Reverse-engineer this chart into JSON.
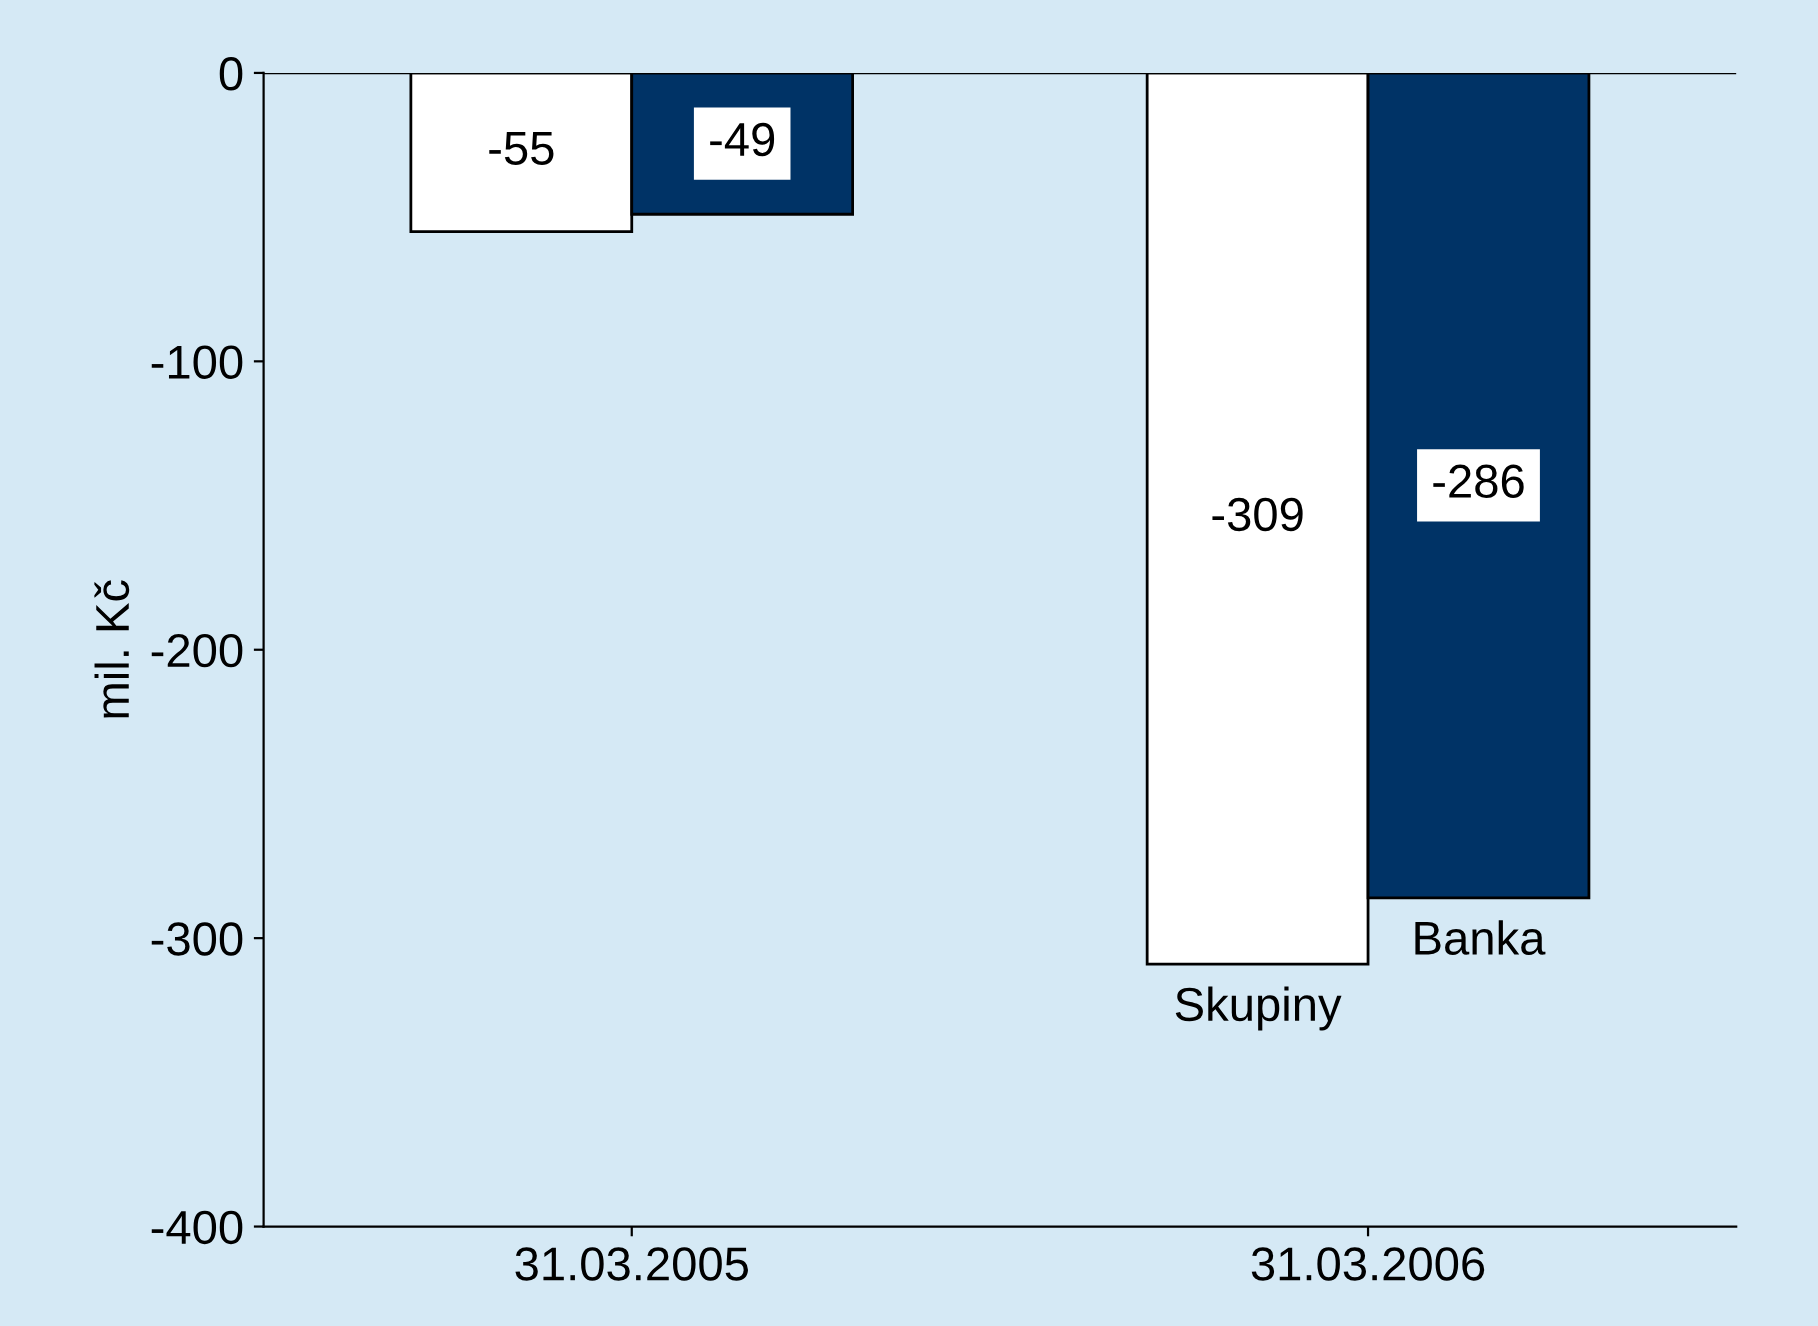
{
  "chart_data": {
    "type": "bar",
    "ylabel": "mil. Kč",
    "categories": [
      "31.03.2005",
      "31.03.2006"
    ],
    "series": [
      {
        "name": "Skupiny",
        "color": "#ffffff",
        "values": [
          -55,
          -309
        ]
      },
      {
        "name": "Banka",
        "color": "#003366",
        "values": [
          -49,
          -286
        ]
      }
    ],
    "ylim": [
      -400,
      0
    ],
    "yticks": [
      0,
      -100,
      -200,
      -300,
      -400
    ],
    "data_labels": true,
    "grid": false,
    "legend": false
  }
}
